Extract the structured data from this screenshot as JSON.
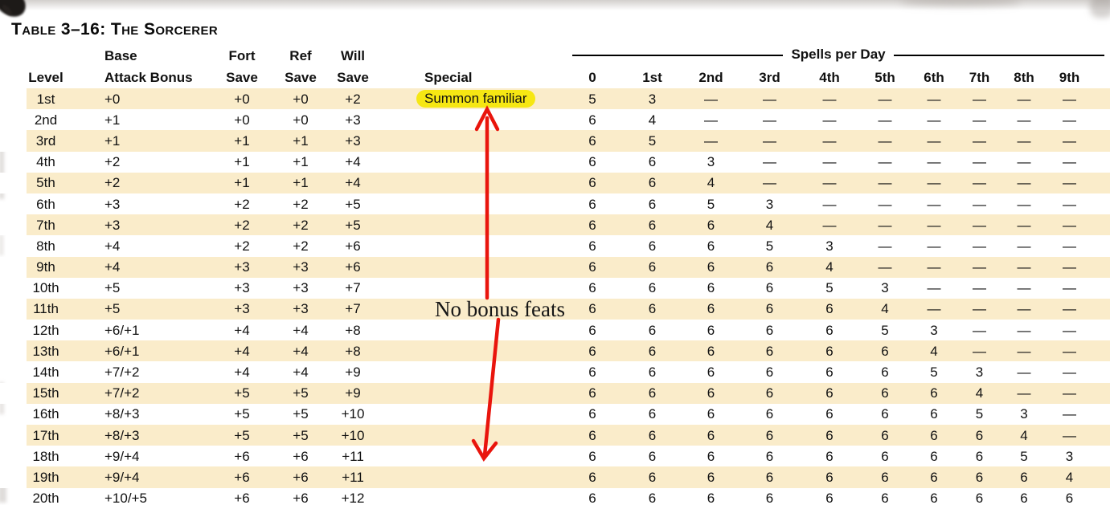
{
  "page": {
    "title": "Table 3–16: The Sorcerer"
  },
  "annotation": {
    "text": "No bonus feats"
  },
  "colors": {
    "row_stripe": "#faecca",
    "highlight_yellow": "#f6e713",
    "arrow_red": "#e9150d",
    "text": "#111111"
  },
  "table": {
    "left_headers": {
      "level_top": "",
      "level_bottom": "Level",
      "bab_top": "Base",
      "bab_bottom": "Attack Bonus",
      "fort_top": "Fort",
      "fort_bottom": "Save",
      "ref_top": "Ref",
      "ref_bottom": "Save",
      "will_top": "Will",
      "will_bottom": "Save",
      "special_top": "",
      "special_bottom": "Special"
    },
    "spells_group_label": "Spells per Day",
    "spell_headers": [
      "0",
      "1st",
      "2nd",
      "3rd",
      "4th",
      "5th",
      "6th",
      "7th",
      "8th",
      "9th"
    ],
    "rows": [
      {
        "level": "1st",
        "bab": "+0",
        "fort": "+0",
        "ref": "+0",
        "will": "+2",
        "special": "Summon familiar",
        "special_highlight": true,
        "spells": [
          "5",
          "3",
          "—",
          "—",
          "—",
          "—",
          "—",
          "—",
          "—",
          "—"
        ]
      },
      {
        "level": "2nd",
        "bab": "+1",
        "fort": "+0",
        "ref": "+0",
        "will": "+3",
        "special": "",
        "special_highlight": false,
        "spells": [
          "6",
          "4",
          "—",
          "—",
          "—",
          "—",
          "—",
          "—",
          "—",
          "—"
        ]
      },
      {
        "level": "3rd",
        "bab": "+1",
        "fort": "+1",
        "ref": "+1",
        "will": "+3",
        "special": "",
        "special_highlight": false,
        "spells": [
          "6",
          "5",
          "—",
          "—",
          "—",
          "—",
          "—",
          "—",
          "—",
          "—"
        ]
      },
      {
        "level": "4th",
        "bab": "+2",
        "fort": "+1",
        "ref": "+1",
        "will": "+4",
        "special": "",
        "special_highlight": false,
        "spells": [
          "6",
          "6",
          "3",
          "—",
          "—",
          "—",
          "—",
          "—",
          "—",
          "—"
        ]
      },
      {
        "level": "5th",
        "bab": "+2",
        "fort": "+1",
        "ref": "+1",
        "will": "+4",
        "special": "",
        "special_highlight": false,
        "spells": [
          "6",
          "6",
          "4",
          "—",
          "—",
          "—",
          "—",
          "—",
          "—",
          "—"
        ]
      },
      {
        "level": "6th",
        "bab": "+3",
        "fort": "+2",
        "ref": "+2",
        "will": "+5",
        "special": "",
        "special_highlight": false,
        "spells": [
          "6",
          "6",
          "5",
          "3",
          "—",
          "—",
          "—",
          "—",
          "—",
          "—"
        ]
      },
      {
        "level": "7th",
        "bab": "+3",
        "fort": "+2",
        "ref": "+2",
        "will": "+5",
        "special": "",
        "special_highlight": false,
        "spells": [
          "6",
          "6",
          "6",
          "4",
          "—",
          "—",
          "—",
          "—",
          "—",
          "—"
        ]
      },
      {
        "level": "8th",
        "bab": "+4",
        "fort": "+2",
        "ref": "+2",
        "will": "+6",
        "special": "",
        "special_highlight": false,
        "spells": [
          "6",
          "6",
          "6",
          "5",
          "3",
          "—",
          "—",
          "—",
          "—",
          "—"
        ]
      },
      {
        "level": "9th",
        "bab": "+4",
        "fort": "+3",
        "ref": "+3",
        "will": "+6",
        "special": "",
        "special_highlight": false,
        "spells": [
          "6",
          "6",
          "6",
          "6",
          "4",
          "—",
          "—",
          "—",
          "—",
          "—"
        ]
      },
      {
        "level": "10th",
        "bab": "+5",
        "fort": "+3",
        "ref": "+3",
        "will": "+7",
        "special": "",
        "special_highlight": false,
        "spells": [
          "6",
          "6",
          "6",
          "6",
          "5",
          "3",
          "—",
          "—",
          "—",
          "—"
        ]
      },
      {
        "level": "11th",
        "bab": "+5",
        "fort": "+3",
        "ref": "+3",
        "will": "+7",
        "special": "",
        "special_highlight": false,
        "spells": [
          "6",
          "6",
          "6",
          "6",
          "6",
          "4",
          "—",
          "—",
          "—",
          "—"
        ]
      },
      {
        "level": "12th",
        "bab": "+6/+1",
        "fort": "+4",
        "ref": "+4",
        "will": "+8",
        "special": "",
        "special_highlight": false,
        "spells": [
          "6",
          "6",
          "6",
          "6",
          "6",
          "5",
          "3",
          "—",
          "—",
          "—"
        ]
      },
      {
        "level": "13th",
        "bab": "+6/+1",
        "fort": "+4",
        "ref": "+4",
        "will": "+8",
        "special": "",
        "special_highlight": false,
        "spells": [
          "6",
          "6",
          "6",
          "6",
          "6",
          "6",
          "4",
          "—",
          "—",
          "—"
        ]
      },
      {
        "level": "14th",
        "bab": "+7/+2",
        "fort": "+4",
        "ref": "+4",
        "will": "+9",
        "special": "",
        "special_highlight": false,
        "spells": [
          "6",
          "6",
          "6",
          "6",
          "6",
          "6",
          "5",
          "3",
          "—",
          "—"
        ]
      },
      {
        "level": "15th",
        "bab": "+7/+2",
        "fort": "+5",
        "ref": "+5",
        "will": "+9",
        "special": "",
        "special_highlight": false,
        "spells": [
          "6",
          "6",
          "6",
          "6",
          "6",
          "6",
          "6",
          "4",
          "—",
          "—"
        ]
      },
      {
        "level": "16th",
        "bab": "+8/+3",
        "fort": "+5",
        "ref": "+5",
        "will": "+10",
        "special": "",
        "special_highlight": false,
        "spells": [
          "6",
          "6",
          "6",
          "6",
          "6",
          "6",
          "6",
          "5",
          "3",
          "—"
        ]
      },
      {
        "level": "17th",
        "bab": "+8/+3",
        "fort": "+5",
        "ref": "+5",
        "will": "+10",
        "special": "",
        "special_highlight": false,
        "spells": [
          "6",
          "6",
          "6",
          "6",
          "6",
          "6",
          "6",
          "6",
          "4",
          "—"
        ]
      },
      {
        "level": "18th",
        "bab": "+9/+4",
        "fort": "+6",
        "ref": "+6",
        "will": "+11",
        "special": "",
        "special_highlight": false,
        "spells": [
          "6",
          "6",
          "6",
          "6",
          "6",
          "6",
          "6",
          "6",
          "5",
          "3"
        ]
      },
      {
        "level": "19th",
        "bab": "+9/+4",
        "fort": "+6",
        "ref": "+6",
        "will": "+11",
        "special": "",
        "special_highlight": false,
        "spells": [
          "6",
          "6",
          "6",
          "6",
          "6",
          "6",
          "6",
          "6",
          "6",
          "4"
        ]
      },
      {
        "level": "20th",
        "bab": "+10/+5",
        "fort": "+6",
        "ref": "+6",
        "will": "+12",
        "special": "",
        "special_highlight": false,
        "spells": [
          "6",
          "6",
          "6",
          "6",
          "6",
          "6",
          "6",
          "6",
          "6",
          "6"
        ]
      }
    ]
  }
}
